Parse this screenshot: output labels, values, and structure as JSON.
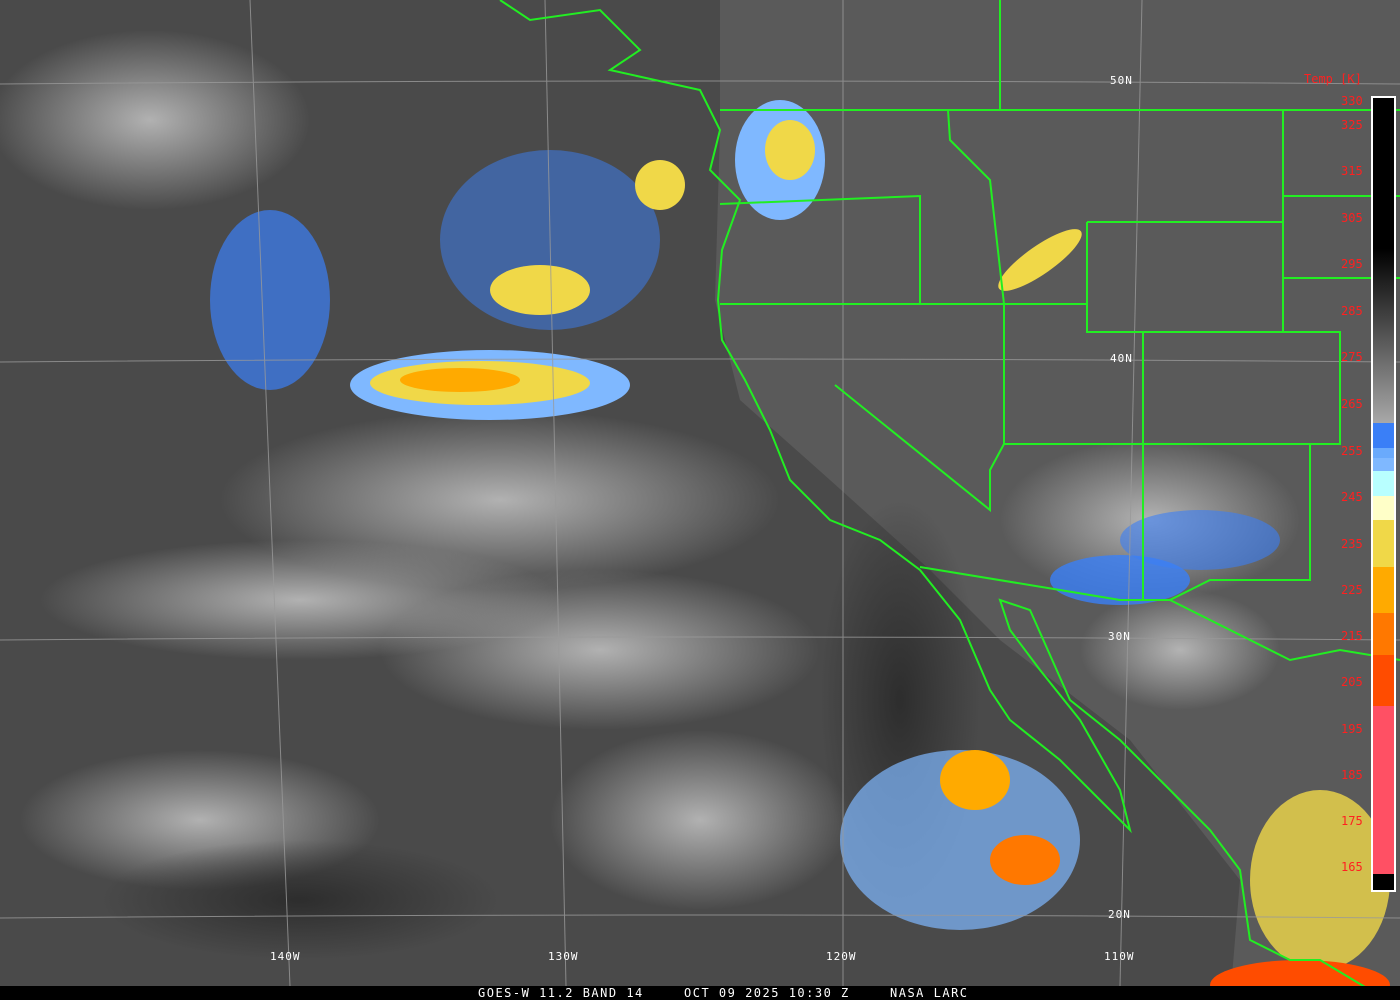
{
  "caption": {
    "satellite": "GOES-W 11.2 BAND 14",
    "datetime": "OCT 09 2025 10:30 Z",
    "source": "NASA LARC"
  },
  "grid_labels": {
    "lat": [
      "50N",
      "40N",
      "30N",
      "20N"
    ],
    "lon": [
      "140W",
      "130W",
      "120W",
      "110W"
    ]
  },
  "colorbar": {
    "title": "Temp [K]",
    "ticks": [
      "330",
      "325",
      "315",
      "305",
      "295",
      "285",
      "275",
      "265",
      "255",
      "245",
      "235",
      "225",
      "215",
      "205",
      "195",
      "185",
      "175",
      "165"
    ],
    "colors": {
      "warm": "#000000",
      "mid": "#a8a8a8",
      "blue": "#3a7ff7",
      "light_blue": "#7fb8ff",
      "cyan": "#b8ffff",
      "cream": "#ffffc8",
      "yellow": "#f0d848",
      "orange": "#ffaa00",
      "dark_orange": "#ff7800",
      "red_orange": "#ff4c00",
      "pink": "#ff5064"
    }
  },
  "overlay_colors": {
    "boundaries": "#22ee22",
    "grid": "#9a9a9a",
    "tick_text": "#ff2020"
  }
}
